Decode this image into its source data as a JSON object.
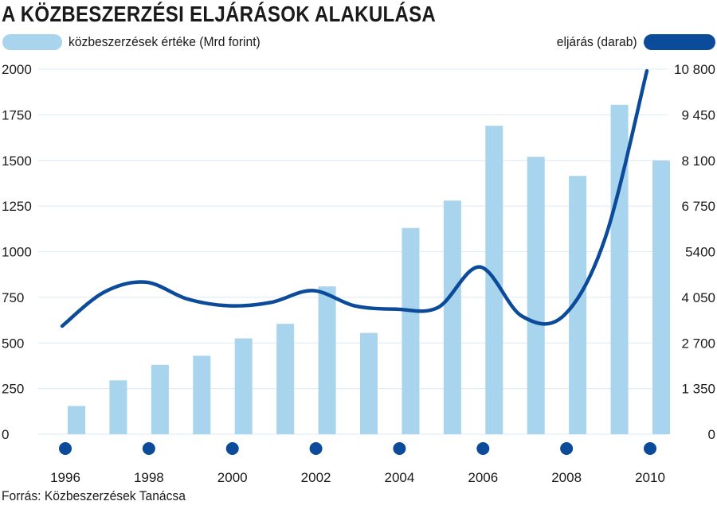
{
  "title": "A KÖZBESZERZÉSI ELJÁRÁSOK ALAKULÁSA",
  "legend": {
    "bars_label": "közbeszerzések értéke (Mrd forint)",
    "line_label": "eljárás (darab)"
  },
  "source": "Forrás: Közbeszerzések Tanácsa",
  "colors": {
    "bar": "#a9d4ee",
    "line": "#0b4b9a",
    "grid": "#dbe9f4",
    "legend_bar": "#a9d4ee",
    "legend_line": "#0b4b9a"
  },
  "chart_data": {
    "type": "bar+line",
    "categories": [
      1996,
      1997,
      1998,
      1999,
      2000,
      2001,
      2002,
      2003,
      2004,
      2005,
      2006,
      2007,
      2008,
      2009,
      2010
    ],
    "x_tick_labels": [
      "1996",
      "1998",
      "2000",
      "2002",
      "2004",
      "2006",
      "2008",
      "2010"
    ],
    "series": [
      {
        "name": "közbeszerzések értéke (Mrd forint)",
        "type": "bar",
        "axis": "left",
        "values": [
          155,
          295,
          380,
          430,
          525,
          605,
          810,
          555,
          1130,
          1280,
          1690,
          1520,
          1415,
          1805,
          1500
        ]
      },
      {
        "name": "eljárás (darab)",
        "type": "line",
        "axis": "right",
        "values": [
          3200,
          4200,
          4500,
          4000,
          3800,
          3900,
          4250,
          3800,
          3700,
          3750,
          4950,
          3500,
          3500,
          5800,
          10750
        ]
      }
    ],
    "y_left": {
      "range": [
        0,
        2000
      ],
      "ticks": [
        0,
        250,
        500,
        750,
        1000,
        1250,
        1500,
        1750,
        2000
      ],
      "tick_labels": [
        "0",
        "250",
        "500",
        "750",
        "1000",
        "1250",
        "1500",
        "1750",
        "2000"
      ]
    },
    "y_right": {
      "range": [
        0,
        10800
      ],
      "ticks": [
        0,
        1350,
        2700,
        4050,
        5400,
        6750,
        8100,
        9450,
        10800
      ],
      "tick_labels": [
        "0",
        "1 350",
        "2 700",
        "4 050",
        "5400",
        "6 750",
        "8 100",
        "9 450",
        "10 800"
      ]
    },
    "grid": true,
    "markers_on_even_years": true
  }
}
